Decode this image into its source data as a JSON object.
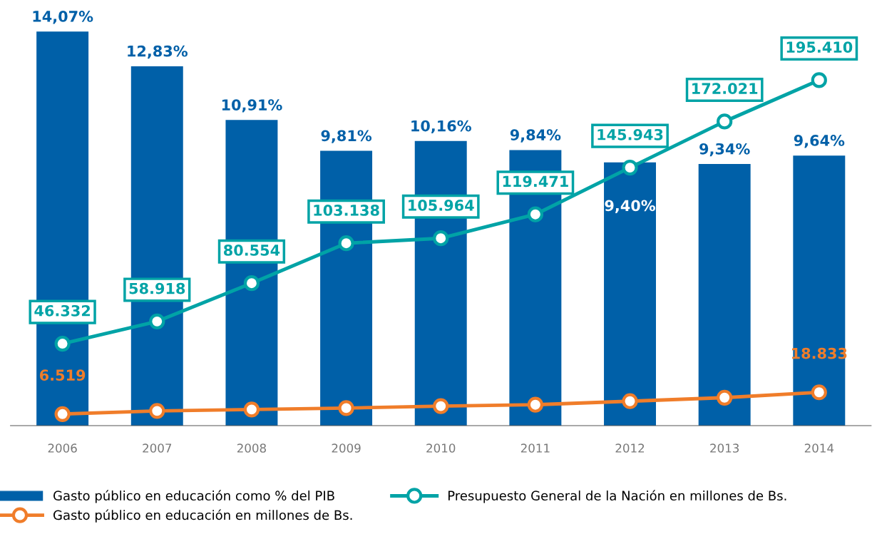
{
  "chart_data": {
    "type": "bar",
    "categories": [
      "2006",
      "2007",
      "2008",
      "2009",
      "2010",
      "2011",
      "2012",
      "2013",
      "2014"
    ],
    "series": [
      {
        "name": "Gasto público en educación como % del PIB",
        "color": "#0060a8",
        "values": [
          14.07,
          12.83,
          10.91,
          9.81,
          10.16,
          9.84,
          9.4,
          9.34,
          9.64
        ],
        "value_labels": [
          "14,07%",
          "12,83%",
          "10,91%",
          "9,81%",
          "10,16%",
          "9,84%",
          "9,40%",
          "9,34%",
          "9,64%"
        ]
      },
      {
        "name": "Gasto público en educación en millones de Bs.",
        "type": "line",
        "axis": "y2",
        "color": "#f07d2a",
        "values": [
          6519,
          8300,
          9100,
          9900,
          11000,
          11800,
          13800,
          15800,
          18833
        ],
        "value_labels": [
          "6.519",
          null,
          null,
          null,
          null,
          null,
          null,
          null,
          "18.833"
        ]
      },
      {
        "name": "Presupuesto General de la Nación en millones de Bs.",
        "type": "line",
        "axis": "y2",
        "color": "#00a3a6",
        "values": [
          46332,
          58918,
          80554,
          103138,
          105964,
          119471,
          145943,
          172021,
          195410
        ],
        "value_labels": [
          "46.332",
          "58.918",
          "80.554",
          "103.138",
          "105.964",
          "119.471",
          "145.943",
          "172.021",
          "195.410"
        ]
      }
    ],
    "marker": "circle",
    "line_style": "solid",
    "legend": "bottom",
    "grid": false,
    "tick_labels": "x"
  }
}
